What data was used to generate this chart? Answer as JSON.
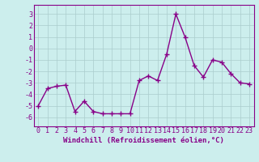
{
  "x": [
    0,
    1,
    2,
    3,
    4,
    5,
    6,
    7,
    8,
    9,
    10,
    11,
    12,
    13,
    14,
    15,
    16,
    17,
    18,
    19,
    20,
    21,
    22,
    23
  ],
  "y": [
    -5.0,
    -3.5,
    -3.3,
    -3.2,
    -5.5,
    -4.6,
    -5.5,
    -5.7,
    -5.7,
    -5.7,
    -5.7,
    -2.8,
    -2.4,
    -2.8,
    -0.5,
    3.0,
    1.0,
    -1.5,
    -2.5,
    -1.0,
    -1.2,
    -2.2,
    -3.0,
    -3.1
  ],
  "line_color": "#880088",
  "marker": "+",
  "marker_size": 4,
  "marker_lw": 1.0,
  "xlabel": "Windchill (Refroidissement éolien,°C)",
  "xlabel_fontsize": 6.5,
  "ylabel_ticks": [
    -6,
    -5,
    -4,
    -3,
    -2,
    -1,
    0,
    1,
    2,
    3
  ],
  "xlim": [
    -0.5,
    23.5
  ],
  "ylim": [
    -6.8,
    3.8
  ],
  "bg_color": "#cceeed",
  "grid_color": "#aacccc",
  "tick_fontsize": 6,
  "line_width": 1.0,
  "spine_color": "#880088"
}
